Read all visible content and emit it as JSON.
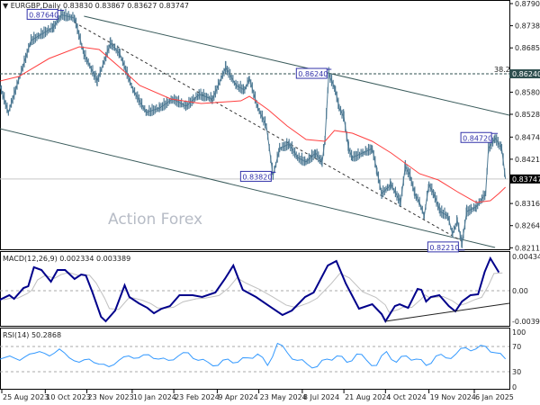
{
  "header": {
    "symbol_line": "EURGBP,Daily  0.83830 0.83867 0.83627 0.83747"
  },
  "watermark": "Action Forex",
  "colors": {
    "bars": "#4f7a94",
    "ma": "#ff4040",
    "macd": "#00008b",
    "macd_signal": "#c0c0c0",
    "rsi": "#3399ff",
    "label_box": "#3333aa",
    "level_bg": "#2f4f4f",
    "current_bg": "#000000"
  },
  "chart_data": [
    {
      "type": "line",
      "title": "EURGBP,Daily",
      "ohlc_last": {
        "open": 0.8383,
        "high": 0.83867,
        "low": 0.83627,
        "close": 0.83747
      },
      "ylim": [
        0.82115,
        0.87905
      ],
      "y_ticks": [
        "0.87905",
        "0.87380",
        "0.86855",
        "0.85805",
        "0.85280",
        "0.84740",
        "0.84215",
        "0.83165",
        "0.82640",
        "0.82115"
      ],
      "x_ticks": [
        "25 Aug 2023",
        "10 Oct 2023",
        "23 Nov 2023",
        "10 Jan 2024",
        "23 Feb 2024",
        "9 Apr 2024",
        "23 May 2024",
        "8 Jul 2024",
        "21 Aug 2024",
        "4 Oct 2024",
        "19 Nov 2024",
        "6 Jan 2025"
      ],
      "current_price": "0.83747",
      "level_line": {
        "price": "0.86240",
        "label": "38.2"
      },
      "price": [
        [
          "2023-08-23",
          0.85963
        ],
        [
          "2023-09-01",
          0.85323
        ],
        [
          "2023-09-25",
          0.8703
        ],
        [
          "2023-10-19",
          0.8735
        ],
        [
          "2023-10-27",
          0.8764
        ],
        [
          "2023-11-10",
          0.87564
        ],
        [
          "2023-11-20",
          0.8671
        ],
        [
          "2023-12-04",
          0.8607
        ],
        [
          "2023-12-18",
          0.86966
        ],
        [
          "2023-12-28",
          0.8671
        ],
        [
          "2024-01-11",
          0.85856
        ],
        [
          "2024-01-25",
          0.85323
        ],
        [
          "2024-02-08",
          0.8543
        ],
        [
          "2024-02-22",
          0.85643
        ],
        [
          "2024-03-07",
          0.85472
        ],
        [
          "2024-03-21",
          0.8575
        ],
        [
          "2024-04-04",
          0.85643
        ],
        [
          "2024-04-18",
          0.8639
        ],
        [
          "2024-04-29",
          0.85963
        ],
        [
          "2024-05-08",
          0.85856
        ],
        [
          "2024-05-13",
          0.86134
        ],
        [
          "2024-05-22",
          0.8543
        ],
        [
          "2024-05-31",
          0.85003
        ],
        [
          "2024-06-07",
          0.8382
        ],
        [
          "2024-06-14",
          0.84469
        ],
        [
          "2024-06-24",
          0.84576
        ],
        [
          "2024-07-03",
          0.84256
        ],
        [
          "2024-07-12",
          0.84149
        ],
        [
          "2024-07-22",
          0.84363
        ],
        [
          "2024-07-29",
          0.84149
        ],
        [
          "2024-08-01",
          0.84683
        ],
        [
          "2024-08-05",
          0.8624
        ],
        [
          "2024-08-12",
          0.85856
        ],
        [
          "2024-08-16",
          0.8543
        ],
        [
          "2024-08-21",
          0.85216
        ],
        [
          "2024-08-26",
          0.84469
        ],
        [
          "2024-08-30",
          0.84256
        ],
        [
          "2024-09-10",
          0.84363
        ],
        [
          "2024-09-20",
          0.84469
        ],
        [
          "2024-09-25",
          0.83936
        ],
        [
          "2024-09-30",
          0.83402
        ],
        [
          "2024-10-10",
          0.83616
        ],
        [
          "2024-10-20",
          0.83189
        ],
        [
          "2024-10-25",
          0.84042
        ],
        [
          "2024-10-30",
          0.83829
        ],
        [
          "2024-11-04",
          0.83402
        ],
        [
          "2024-11-09",
          0.83189
        ],
        [
          "2024-11-14",
          0.82869
        ],
        [
          "2024-11-19",
          0.83616
        ],
        [
          "2024-11-24",
          0.83402
        ],
        [
          "2024-12-01",
          0.82975
        ],
        [
          "2024-12-09",
          0.82869
        ],
        [
          "2024-12-14",
          0.82442
        ],
        [
          "2024-12-19",
          0.82762
        ],
        [
          "2024-12-24",
          0.8221
        ],
        [
          "2024-12-29",
          0.82975
        ],
        [
          "2025-01-08",
          0.83082
        ],
        [
          "2025-01-18",
          0.83402
        ],
        [
          "2025-01-21",
          0.84469
        ],
        [
          "2025-01-28",
          0.8472
        ],
        [
          "2025-02-04",
          0.84469
        ],
        [
          "2025-02-08",
          0.83747
        ]
      ],
      "moving_average": [
        [
          "2023-08-23",
          0.8607
        ],
        [
          "2023-09-12",
          0.86176
        ],
        [
          "2023-10-14",
          0.86603
        ],
        [
          "2023-11-15",
          0.86881
        ],
        [
          "2023-12-06",
          0.86817
        ],
        [
          "2023-12-28",
          0.8639
        ],
        [
          "2024-01-18",
          0.85963
        ],
        [
          "2024-02-20",
          0.85643
        ],
        [
          "2024-03-23",
          0.85536
        ],
        [
          "2024-05-04",
          0.856
        ],
        [
          "2024-05-13",
          0.85707
        ],
        [
          "2024-06-02",
          0.85387
        ],
        [
          "2024-06-22",
          0.85003
        ],
        [
          "2024-07-12",
          0.84683
        ],
        [
          "2024-08-01",
          0.8464
        ],
        [
          "2024-08-11",
          0.84896
        ],
        [
          "2024-08-30",
          0.84832
        ],
        [
          "2024-09-20",
          0.8464
        ],
        [
          "2024-10-10",
          0.84363
        ],
        [
          "2024-11-09",
          0.83872
        ],
        [
          "2024-11-29",
          0.83722
        ],
        [
          "2024-12-19",
          0.83445
        ],
        [
          "2025-01-08",
          0.83189
        ],
        [
          "2025-01-23",
          0.83232
        ],
        [
          "2025-02-01",
          0.83402
        ],
        [
          "2025-02-08",
          0.83552
        ]
      ],
      "annotations": [
        {
          "date": "2023-10-27",
          "price": 0.8764,
          "label": "0.87640"
        },
        {
          "date": "2024-08-05",
          "price": 0.8624,
          "label": "0.86240"
        },
        {
          "date": "2024-06-07",
          "price": 0.8382,
          "label": "0.83820"
        },
        {
          "date": "2025-01-28",
          "price": 0.8472,
          "label": "0.84720"
        },
        {
          "date": "2024-12-24",
          "price": 0.8221,
          "label": "0.82210"
        }
      ],
      "trendlines": [
        {
          "style": "solid",
          "from": [
            "2023-11-20",
            0.87606
          ],
          "to": [
            "2025-02-18",
            0.85259
          ]
        },
        {
          "style": "solid",
          "from": [
            "2023-08-23",
            0.84939
          ],
          "to": [
            "2025-01-28",
            0.82122
          ]
        },
        {
          "style": "dashed",
          "from": [
            "2023-11-10",
            0.87457
          ],
          "to": [
            "2024-12-24",
            0.82271
          ]
        }
      ]
    },
    {
      "type": "line",
      "title": "MACD(12,26,9) 0.002334 0.003389",
      "y_ticks": [
        "0.004341",
        "0.00",
        "-0.003916"
      ],
      "ylim": [
        -0.003916,
        0.004341
      ],
      "macd": [
        [
          "2023-08-23",
          -0.00115
        ],
        [
          "2023-09-02",
          -0.00057
        ],
        [
          "2023-09-07",
          -0.00103
        ],
        [
          "2023-09-17",
          0.00034
        ],
        [
          "2023-09-22",
          0.00057
        ],
        [
          "2023-09-28",
          0.00298
        ],
        [
          "2023-10-06",
          0.00263
        ],
        [
          "2023-10-16",
          0.00115
        ],
        [
          "2023-10-23",
          0.00263
        ],
        [
          "2023-10-31",
          0.00263
        ],
        [
          "2023-11-10",
          0.00149
        ],
        [
          "2023-11-17",
          0.00206
        ],
        [
          "2023-11-22",
          0.00195
        ],
        [
          "2023-11-29",
          -0.00023
        ],
        [
          "2023-12-08",
          -0.00332
        ],
        [
          "2023-12-13",
          -0.00389
        ],
        [
          "2023-12-23",
          -0.00252
        ],
        [
          "2024-01-02",
          0.00069
        ],
        [
          "2024-01-07",
          -0.0008
        ],
        [
          "2024-01-17",
          -0.0016
        ],
        [
          "2024-01-26",
          -0.00218
        ],
        [
          "2024-02-02",
          -0.00286
        ],
        [
          "2024-02-10",
          -0.00229
        ],
        [
          "2024-02-19",
          -0.00195
        ],
        [
          "2024-02-29",
          -0.00057
        ],
        [
          "2024-03-14",
          -0.00057
        ],
        [
          "2024-03-24",
          -0.0008
        ],
        [
          "2024-04-07",
          -0.00023
        ],
        [
          "2024-04-17",
          0.00149
        ],
        [
          "2024-04-26",
          0.00321
        ],
        [
          "2024-05-06",
          0.00011
        ],
        [
          "2024-05-20",
          -0.0008
        ],
        [
          "2024-06-03",
          -0.00195
        ],
        [
          "2024-06-17",
          -0.00309
        ],
        [
          "2024-06-27",
          -0.00252
        ],
        [
          "2024-07-11",
          -0.0008
        ],
        [
          "2024-07-20",
          -0.00023
        ],
        [
          "2024-08-04",
          0.00321
        ],
        [
          "2024-08-13",
          0.00378
        ],
        [
          "2024-08-23",
          0.00092
        ],
        [
          "2024-09-06",
          -0.00229
        ],
        [
          "2024-09-20",
          -0.00172
        ],
        [
          "2024-09-30",
          -0.00298
        ],
        [
          "2024-10-04",
          -0.00389
        ],
        [
          "2024-10-14",
          -0.00195
        ],
        [
          "2024-10-19",
          -0.00172
        ],
        [
          "2024-10-28",
          -0.00218
        ],
        [
          "2024-11-07",
          0.00023
        ],
        [
          "2024-11-11",
          0.00011
        ],
        [
          "2024-11-16",
          -0.00137
        ],
        [
          "2024-11-21",
          -0.0008
        ],
        [
          "2024-11-30",
          -0.00057
        ],
        [
          "2024-12-10",
          -0.00195
        ],
        [
          "2024-12-17",
          -0.00263
        ],
        [
          "2024-12-24",
          -0.00137
        ],
        [
          "2025-01-02",
          -0.00057
        ],
        [
          "2025-01-10",
          -0.00046
        ],
        [
          "2025-01-17",
          0.0024
        ],
        [
          "2025-01-23",
          0.00412
        ],
        [
          "2025-02-01",
          0.002334
        ]
      ],
      "trendline": {
        "from": [
          "2024-10-04",
          -0.00389
        ],
        "to": [
          "2025-02-18",
          -0.0016
        ]
      }
    },
    {
      "type": "line",
      "title": "RSI(14) 50.2868",
      "y_ticks": [
        "100",
        "70",
        "30",
        "0"
      ],
      "ylim": [
        0,
        100
      ],
      "levels": [
        70,
        30
      ],
      "rsi": [
        50,
        55,
        48,
        58,
        62,
        55,
        66,
        52,
        45,
        50,
        42,
        38,
        48,
        55,
        52,
        57,
        50,
        48,
        55,
        60,
        48,
        45,
        40,
        50,
        45,
        52,
        58,
        40,
        75,
        60,
        48,
        42,
        38,
        50,
        55,
        45,
        58,
        48,
        40,
        62,
        45,
        55,
        50,
        40,
        55,
        52,
        58,
        68,
        66,
        70,
        60,
        50.2868
      ]
    }
  ]
}
